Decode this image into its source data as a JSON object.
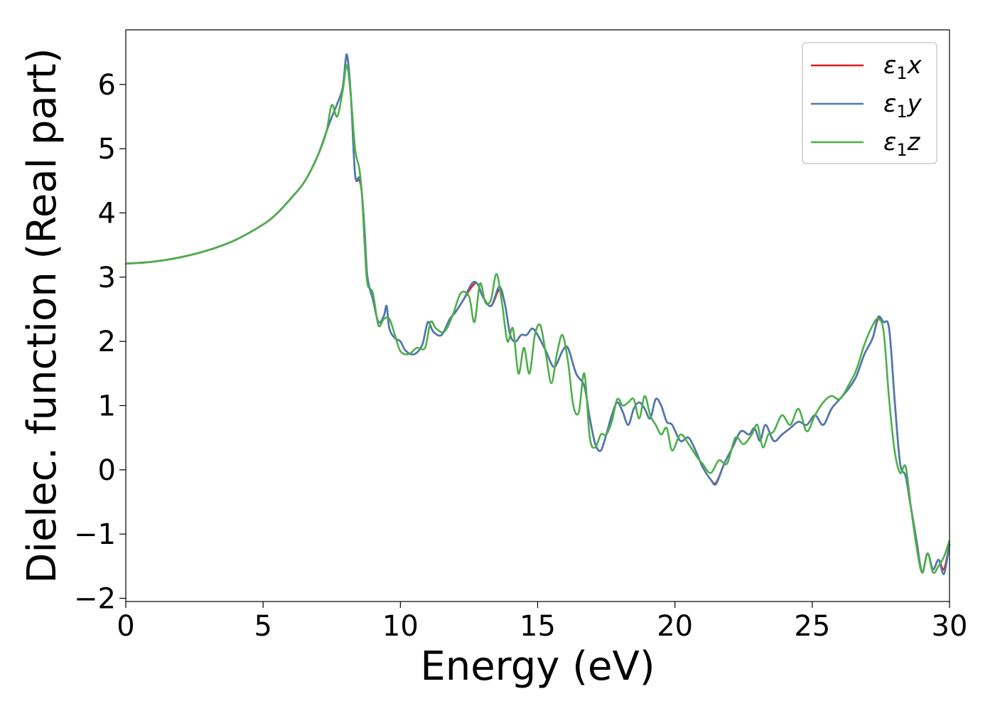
{
  "chart_data": {
    "type": "line",
    "xlabel": "Energy (eV)",
    "ylabel": "Dielec. function (Real part)",
    "xlim": [
      0,
      30
    ],
    "ylim": [
      -2.05,
      6.85
    ],
    "xticks": [
      0,
      5,
      10,
      15,
      20,
      25,
      30
    ],
    "yticks": [
      -2,
      -1,
      0,
      1,
      2,
      3,
      4,
      5,
      6
    ],
    "xtick_labels": [
      "0",
      "5",
      "10",
      "15",
      "20",
      "25",
      "30"
    ],
    "ytick_labels": [
      "−2",
      "−1",
      "0",
      "1",
      "2",
      "3",
      "4",
      "5",
      "6"
    ],
    "grid": false,
    "legend_position": "top-right",
    "series": [
      {
        "name": "ε₁x",
        "legend_label": "ε",
        "legend_sub": "1",
        "legend_var": "x",
        "color": "#e41a1c",
        "x": [
          0,
          1,
          2,
          3,
          4,
          5,
          5.5,
          6,
          6.5,
          7,
          7.4,
          7.7,
          7.9,
          8.05,
          8.2,
          8.35,
          8.5,
          8.6,
          8.7,
          8.8,
          9.0,
          9.2,
          9.4,
          9.5,
          9.6,
          9.8,
          10.0,
          10.2,
          10.5,
          10.8,
          11.0,
          11.2,
          11.5,
          11.8,
          12.0,
          12.3,
          12.6,
          12.8,
          13.0,
          13.3,
          13.6,
          13.8,
          14.0,
          14.2,
          14.4,
          14.6,
          14.8,
          15.0,
          15.3,
          15.6,
          15.9,
          16.1,
          16.4,
          16.7,
          16.9,
          17.1,
          17.3,
          17.5,
          17.7,
          17.9,
          18.1,
          18.3,
          18.5,
          18.7,
          18.9,
          19.1,
          19.3,
          19.5,
          19.7,
          19.9,
          20.2,
          20.5,
          20.8,
          21.0,
          21.3,
          21.5,
          21.8,
          22.1,
          22.4,
          22.7,
          22.9,
          23.1,
          23.3,
          23.6,
          23.9,
          24.2,
          24.5,
          24.8,
          25.1,
          25.4,
          25.7,
          26.0,
          26.3,
          26.6,
          26.9,
          27.2,
          27.4,
          27.6,
          27.8,
          28.0,
          28.2,
          28.4,
          28.6,
          28.8,
          29.0,
          29.2,
          29.4,
          29.6,
          29.8,
          30.0
        ],
        "y": [
          3.21,
          3.24,
          3.31,
          3.42,
          3.58,
          3.82,
          3.99,
          4.22,
          4.48,
          4.9,
          5.38,
          5.7,
          5.95,
          6.45,
          5.8,
          4.6,
          4.52,
          4.3,
          3.7,
          3.0,
          2.65,
          2.3,
          2.4,
          2.55,
          2.2,
          2.05,
          2.0,
          1.85,
          1.8,
          1.95,
          2.3,
          2.15,
          2.1,
          2.35,
          2.45,
          2.65,
          2.85,
          2.9,
          2.7,
          2.55,
          2.8,
          2.6,
          2.1,
          2.0,
          2.1,
          2.1,
          2.2,
          2.1,
          1.85,
          1.6,
          1.85,
          1.9,
          1.5,
          1.3,
          0.8,
          0.4,
          0.3,
          0.55,
          0.85,
          1.05,
          0.9,
          0.7,
          0.95,
          1.05,
          0.95,
          0.8,
          1.1,
          1.0,
          0.75,
          0.7,
          0.45,
          0.5,
          0.25,
          0.05,
          -0.15,
          -0.2,
          0.1,
          0.35,
          0.6,
          0.55,
          0.65,
          0.45,
          0.7,
          0.45,
          0.55,
          0.65,
          0.75,
          0.7,
          0.85,
          0.7,
          0.95,
          1.1,
          1.25,
          1.45,
          1.8,
          2.05,
          2.35,
          2.3,
          2.2,
          1.1,
          0.1,
          -0.1,
          -0.6,
          -1.1,
          -1.6,
          -1.3,
          -1.55,
          -1.4,
          -1.55,
          -1.15
        ]
      },
      {
        "name": "ε₁y",
        "legend_label": "ε",
        "legend_sub": "1",
        "legend_var": "y",
        "color": "#4a7cb0",
        "x": [
          0,
          1,
          2,
          3,
          4,
          5,
          5.5,
          6,
          6.5,
          7,
          7.4,
          7.7,
          7.9,
          8.05,
          8.2,
          8.35,
          8.5,
          8.6,
          8.7,
          8.8,
          9.0,
          9.2,
          9.4,
          9.5,
          9.6,
          9.8,
          10.0,
          10.2,
          10.5,
          10.8,
          11.0,
          11.2,
          11.5,
          11.8,
          12.0,
          12.3,
          12.6,
          12.8,
          13.0,
          13.3,
          13.6,
          13.8,
          14.0,
          14.2,
          14.4,
          14.6,
          14.8,
          15.0,
          15.3,
          15.6,
          15.9,
          16.1,
          16.4,
          16.7,
          16.9,
          17.1,
          17.3,
          17.5,
          17.7,
          17.9,
          18.1,
          18.3,
          18.5,
          18.7,
          18.9,
          19.1,
          19.3,
          19.5,
          19.7,
          19.9,
          20.2,
          20.5,
          20.8,
          21.0,
          21.3,
          21.5,
          21.8,
          22.1,
          22.4,
          22.7,
          22.9,
          23.1,
          23.3,
          23.6,
          23.9,
          24.2,
          24.5,
          24.8,
          25.1,
          25.4,
          25.7,
          26.0,
          26.3,
          26.6,
          26.9,
          27.2,
          27.4,
          27.6,
          27.8,
          28.0,
          28.2,
          28.4,
          28.6,
          28.8,
          29.0,
          29.2,
          29.4,
          29.6,
          29.8,
          30.0
        ],
        "y": [
          3.21,
          3.24,
          3.31,
          3.42,
          3.58,
          3.82,
          3.99,
          4.22,
          4.48,
          4.9,
          5.38,
          5.7,
          5.95,
          6.47,
          5.8,
          4.6,
          4.55,
          4.3,
          3.7,
          3.0,
          2.65,
          2.3,
          2.4,
          2.55,
          2.2,
          2.05,
          2.0,
          1.85,
          1.8,
          1.95,
          2.3,
          2.15,
          2.1,
          2.35,
          2.45,
          2.65,
          2.9,
          2.9,
          2.7,
          2.55,
          2.85,
          2.6,
          2.1,
          2.0,
          2.1,
          2.1,
          2.2,
          2.1,
          1.85,
          1.6,
          1.85,
          1.9,
          1.5,
          1.3,
          0.8,
          0.4,
          0.3,
          0.55,
          0.85,
          1.05,
          0.9,
          0.7,
          0.95,
          1.05,
          0.95,
          0.8,
          1.1,
          1.0,
          0.75,
          0.7,
          0.45,
          0.5,
          0.25,
          0.05,
          -0.15,
          -0.22,
          0.1,
          0.35,
          0.6,
          0.55,
          0.65,
          0.45,
          0.7,
          0.45,
          0.55,
          0.65,
          0.75,
          0.7,
          0.85,
          0.7,
          0.95,
          1.1,
          1.25,
          1.45,
          1.8,
          2.05,
          2.38,
          2.3,
          2.2,
          1.1,
          0.1,
          -0.1,
          -0.6,
          -1.1,
          -1.6,
          -1.3,
          -1.55,
          -1.4,
          -1.62,
          -1.15
        ]
      },
      {
        "name": "ε₁z",
        "legend_label": "ε",
        "legend_sub": "1",
        "legend_var": "z",
        "color": "#4daf4a",
        "x": [
          0,
          1,
          2,
          3,
          4,
          5,
          5.5,
          6,
          6.5,
          7,
          7.3,
          7.5,
          7.7,
          7.9,
          8.05,
          8.2,
          8.35,
          8.5,
          8.6,
          8.7,
          8.8,
          9.0,
          9.2,
          9.4,
          9.6,
          9.8,
          10.0,
          10.3,
          10.6,
          10.9,
          11.1,
          11.3,
          11.6,
          11.9,
          12.2,
          12.5,
          12.7,
          12.9,
          13.1,
          13.3,
          13.5,
          13.7,
          13.9,
          14.1,
          14.3,
          14.5,
          14.7,
          14.9,
          15.1,
          15.3,
          15.5,
          15.7,
          15.9,
          16.1,
          16.3,
          16.5,
          16.7,
          16.9,
          17.1,
          17.3,
          17.5,
          17.7,
          17.9,
          18.1,
          18.3,
          18.5,
          18.7,
          18.9,
          19.1,
          19.3,
          19.5,
          19.7,
          19.9,
          20.2,
          20.5,
          20.8,
          21.0,
          21.3,
          21.6,
          21.9,
          22.2,
          22.5,
          22.8,
          23.0,
          23.2,
          23.4,
          23.6,
          23.9,
          24.2,
          24.5,
          24.8,
          25.1,
          25.4,
          25.7,
          26.0,
          26.3,
          26.6,
          26.9,
          27.2,
          27.4,
          27.6,
          27.8,
          28.0,
          28.2,
          28.4,
          28.6,
          28.8,
          29.0,
          29.2,
          29.4,
          29.6,
          29.8,
          30.0
        ],
        "y": [
          3.21,
          3.24,
          3.31,
          3.42,
          3.58,
          3.82,
          3.99,
          4.22,
          4.48,
          4.9,
          5.25,
          5.68,
          5.5,
          5.9,
          6.3,
          5.8,
          5.0,
          4.7,
          4.3,
          3.5,
          2.9,
          2.75,
          2.25,
          2.35,
          2.35,
          2.1,
          1.85,
          1.8,
          1.9,
          1.9,
          2.3,
          2.2,
          2.15,
          2.4,
          2.75,
          2.7,
          2.3,
          2.9,
          2.6,
          2.65,
          3.05,
          2.6,
          2.0,
          2.2,
          1.5,
          1.9,
          1.5,
          2.1,
          2.25,
          1.8,
          1.35,
          1.8,
          2.1,
          1.7,
          1.0,
          0.9,
          1.5,
          0.5,
          0.35,
          0.55,
          0.55,
          0.75,
          1.1,
          1.0,
          1.05,
          1.1,
          0.8,
          1.15,
          0.85,
          0.7,
          0.55,
          0.65,
          0.3,
          0.55,
          0.4,
          0.2,
          0.1,
          -0.05,
          0.15,
          0.1,
          0.5,
          0.4,
          0.55,
          0.7,
          0.35,
          0.55,
          0.6,
          0.85,
          0.7,
          0.95,
          0.6,
          0.85,
          1.05,
          1.15,
          1.1,
          1.3,
          1.55,
          1.95,
          2.25,
          2.35,
          2.15,
          1.1,
          0.3,
          -0.05,
          0.05,
          -0.6,
          -1.2,
          -1.6,
          -1.3,
          -1.6,
          -1.5,
          -1.35,
          -1.1
        ]
      }
    ]
  }
}
